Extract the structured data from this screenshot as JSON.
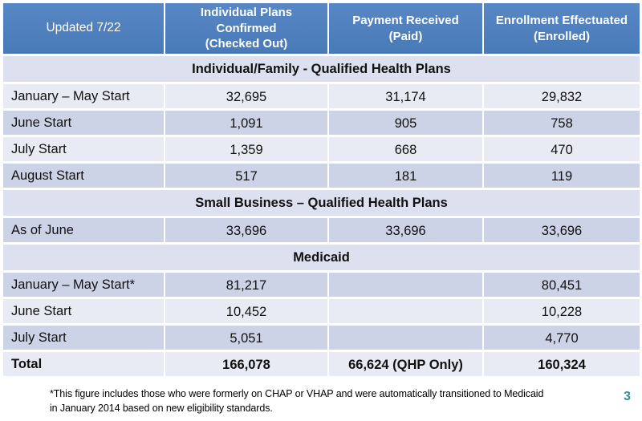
{
  "slide": {
    "page_number": "3",
    "footnote": "*This figure includes those who were formerly on CHAP or VHAP and were automatically transitioned to Medicaid\nin January 2014 based on new eligibility standards."
  },
  "colors": {
    "header_blue": "#4e80bd",
    "row_light": "#e9ebf4",
    "row_band": "#cdd3e7",
    "row_section": "#dde1ef",
    "page_number_teal": "#3a8e8c"
  },
  "table": {
    "header": [
      "Updated 7/22",
      "Individual Plans\nConfirmed\n(Checked Out)",
      "Payment Received\n(Paid)",
      "Enrollment Effectuated\n(Enrolled)"
    ],
    "rows": [
      {
        "type": "section",
        "label": "Individual/Family - Qualified Health Plans"
      },
      {
        "type": "data",
        "label": "January – May Start",
        "c1": "32,695",
        "c2": "31,174",
        "c3": "29,832"
      },
      {
        "type": "data",
        "label": "June Start",
        "c1": "1,091",
        "c2": "905",
        "c3": "758"
      },
      {
        "type": "data",
        "label": "July Start",
        "c1": "1,359",
        "c2": "668",
        "c3": "470"
      },
      {
        "type": "data",
        "label": "August Start",
        "c1": "517",
        "c2": "181",
        "c3": "119"
      },
      {
        "type": "section",
        "label": "Small Business – Qualified Health Plans"
      },
      {
        "type": "data",
        "label": "As of June",
        "c1": "33,696",
        "c2": "33,696",
        "c3": "33,696"
      },
      {
        "type": "section",
        "label": "Medicaid"
      },
      {
        "type": "data",
        "label": "January – May Start*",
        "c1": "81,217",
        "c2": "",
        "c3": "80,451"
      },
      {
        "type": "data",
        "label": "June Start",
        "c1": "10,452",
        "c2": "",
        "c3": "10,228"
      },
      {
        "type": "data",
        "label": "July Start",
        "c1": "5,051",
        "c2": "",
        "c3": "4,770"
      },
      {
        "type": "data",
        "label": "Total",
        "c1": "166,078",
        "c2": "66,624 (QHP Only)",
        "c3": "160,324"
      }
    ]
  }
}
